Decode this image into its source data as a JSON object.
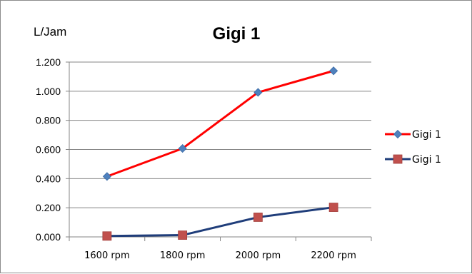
{
  "chart_data": {
    "type": "line",
    "title": "Gigi 1",
    "ylabel": "L/Jam",
    "xlabel": "",
    "categories": [
      "1600 rpm",
      "1800 rpm",
      "2000 rpm",
      "2200 rpm"
    ],
    "ylim": [
      0,
      1.2
    ],
    "yticks": [
      "0.000",
      "0.200",
      "0.400",
      "0.600",
      "0.800",
      "1.000",
      "1.200"
    ],
    "grid": true,
    "legend_position": "right",
    "series": [
      {
        "name": "Gigi 1",
        "values": [
          0.415,
          0.607,
          0.992,
          1.14
        ],
        "line_color": "#ff0000",
        "marker": "diamond",
        "marker_color": "#4f81bd"
      },
      {
        "name": "Gigi 1",
        "values": [
          0.006,
          0.012,
          0.135,
          0.203
        ],
        "line_color": "#1f3d7a",
        "marker": "square",
        "marker_color": "#c0504d"
      }
    ]
  }
}
